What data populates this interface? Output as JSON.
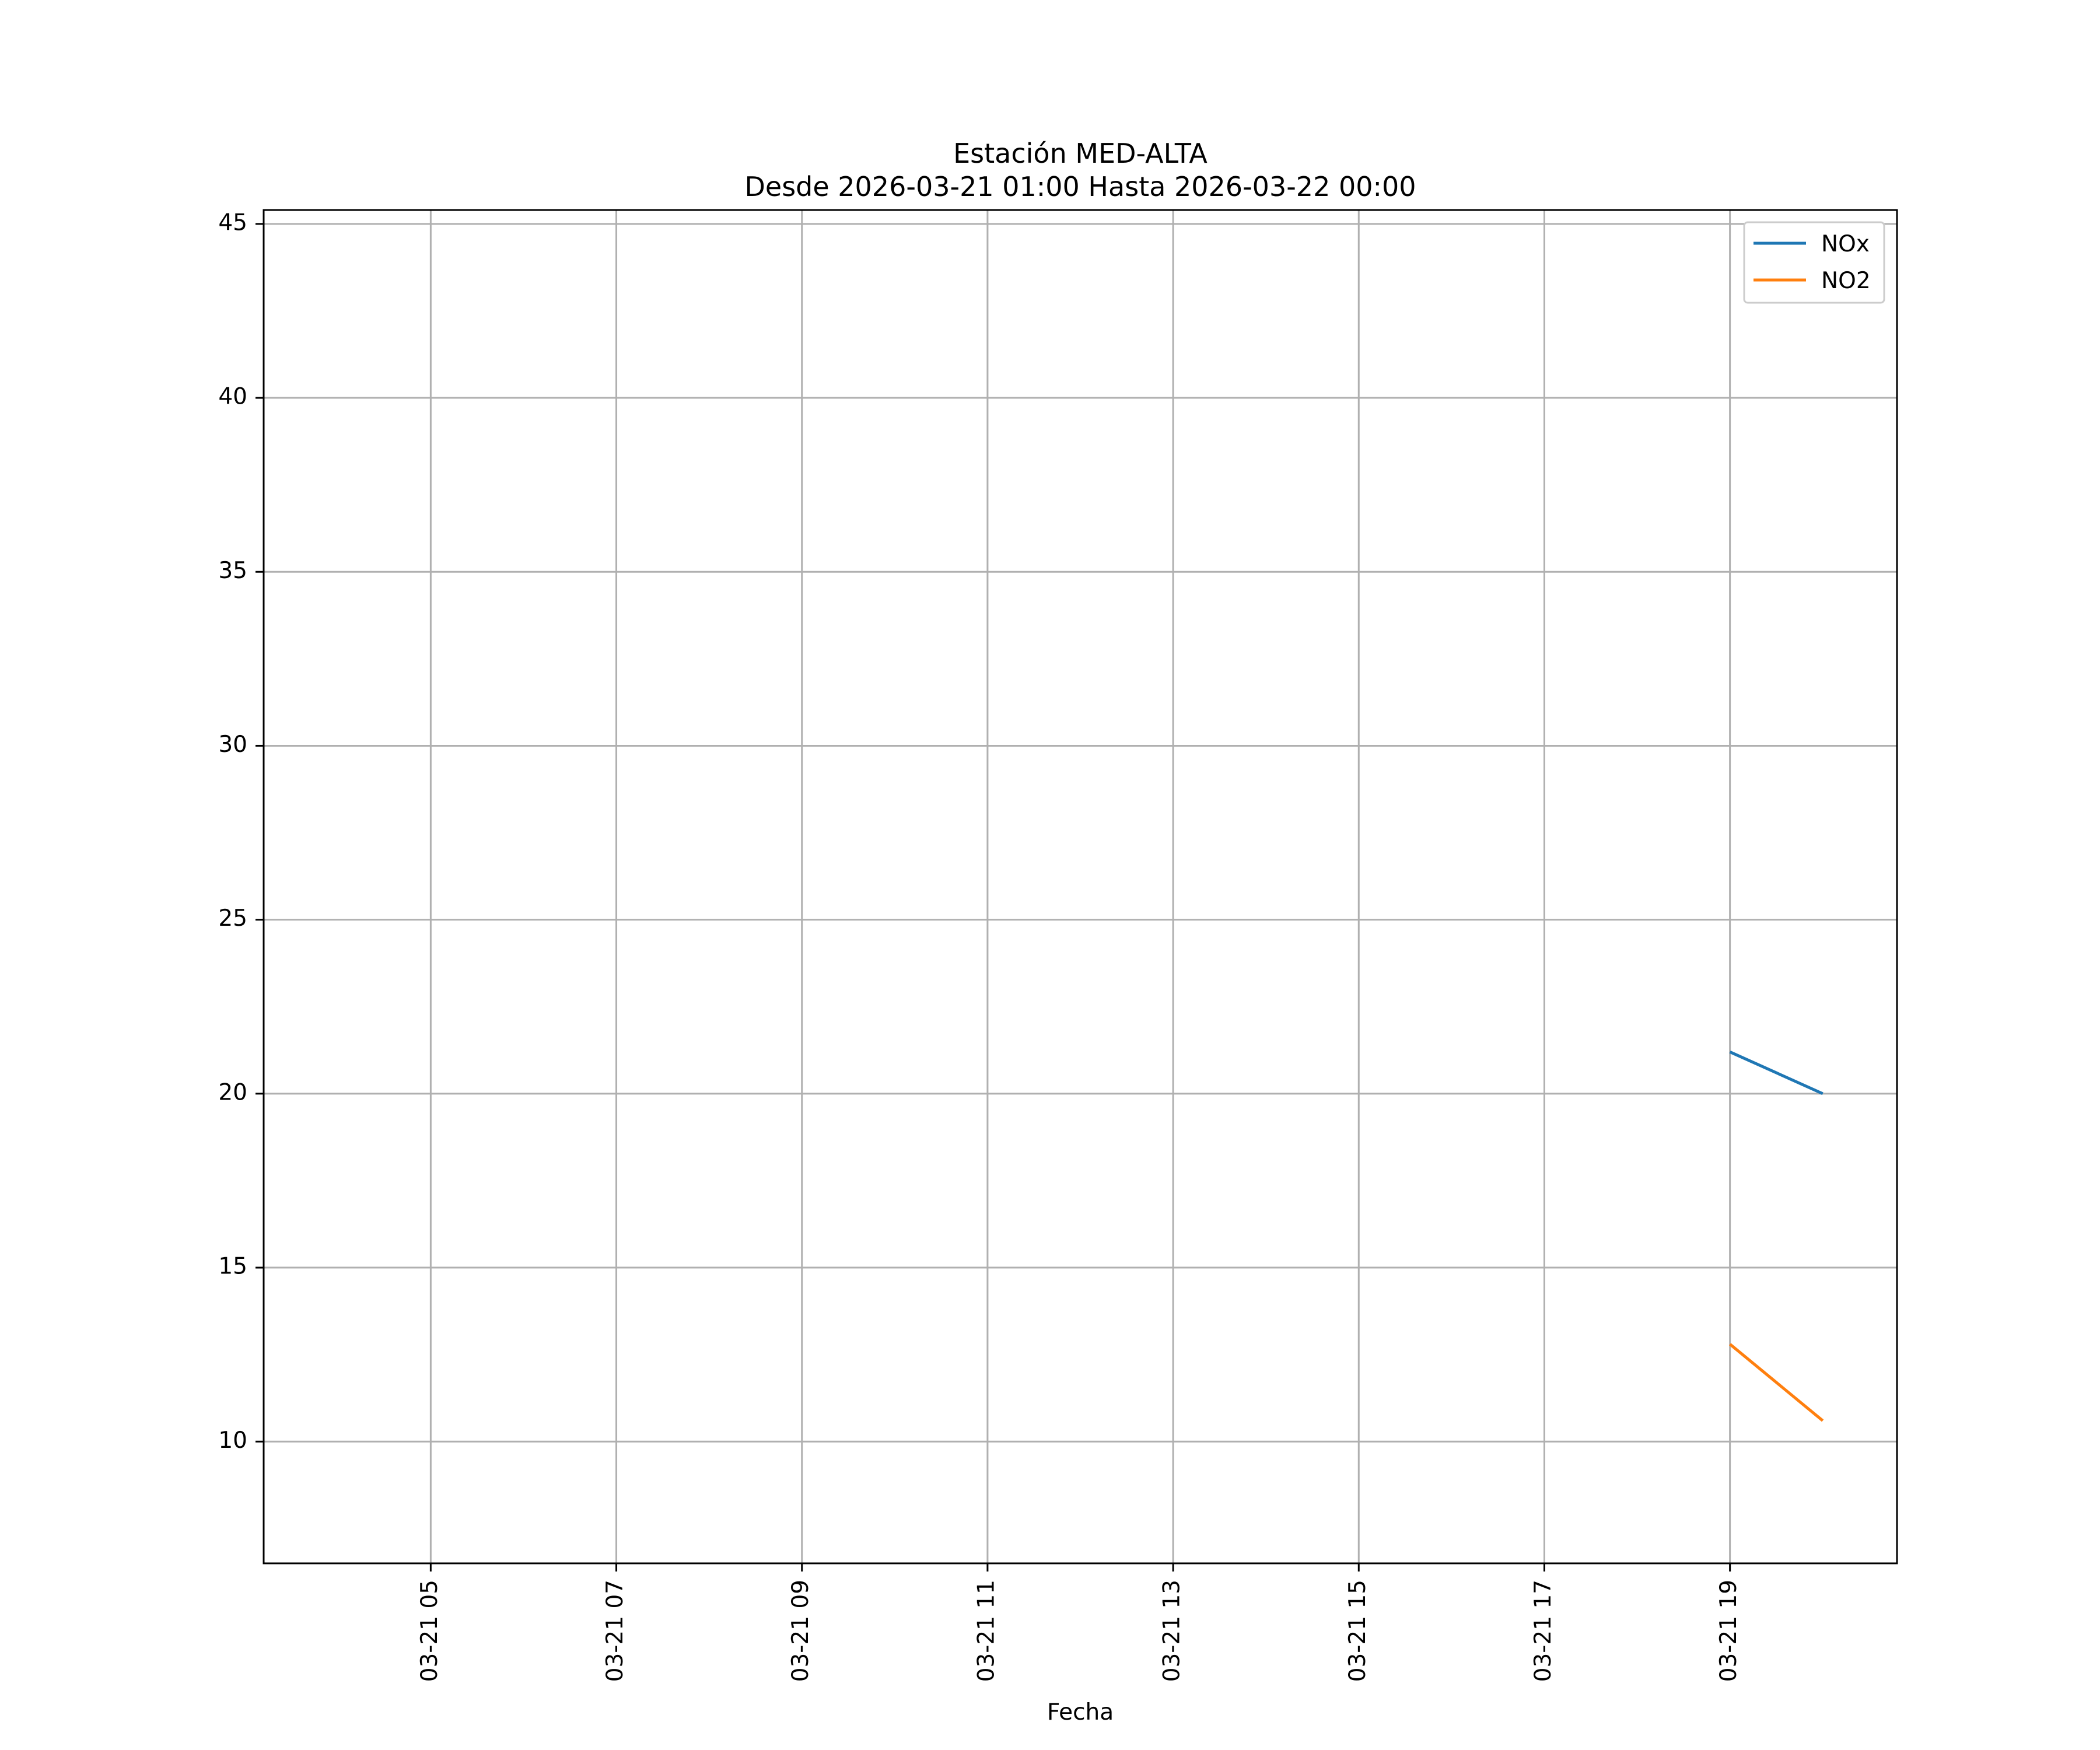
{
  "chart_data": {
    "type": "line",
    "title": "Estación MED-ALTA",
    "subtitle": "Desde 2026-03-21 01:00 Hasta 2026-03-22 00:00",
    "xlabel": "Fecha",
    "ylabel": "",
    "xlim": [
      "2026-03-21 03:12",
      "2026-03-21 20:48"
    ],
    "ylim": [
      6.5,
      45.4
    ],
    "xticks": [
      {
        "value": "2026-03-21 05:00",
        "label": "03-21 05"
      },
      {
        "value": "2026-03-21 07:00",
        "label": "03-21 07"
      },
      {
        "value": "2026-03-21 09:00",
        "label": "03-21 09"
      },
      {
        "value": "2026-03-21 11:00",
        "label": "03-21 11"
      },
      {
        "value": "2026-03-21 13:00",
        "label": "03-21 13"
      },
      {
        "value": "2026-03-21 15:00",
        "label": "03-21 15"
      },
      {
        "value": "2026-03-21 17:00",
        "label": "03-21 17"
      },
      {
        "value": "2026-03-21 19:00",
        "label": "03-21 19"
      }
    ],
    "yticks": [
      {
        "value": 10,
        "label": "10"
      },
      {
        "value": 15,
        "label": "15"
      },
      {
        "value": 20,
        "label": "20"
      },
      {
        "value": 25,
        "label": "25"
      },
      {
        "value": 30,
        "label": "30"
      },
      {
        "value": 35,
        "label": "35"
      },
      {
        "value": 40,
        "label": "40"
      },
      {
        "value": 45,
        "label": "45"
      }
    ],
    "grid": true,
    "legend_position": "top-right",
    "series": [
      {
        "name": "NOx",
        "color": "#1f77b4",
        "x": [
          "2026-03-21 19:00",
          "2026-03-21 20:00"
        ],
        "y": [
          21.2,
          20.0
        ]
      },
      {
        "name": "NO2",
        "color": "#ff7f0e",
        "x": [
          "2026-03-21 19:00",
          "2026-03-21 20:00"
        ],
        "y": [
          12.8,
          10.6
        ]
      }
    ]
  }
}
